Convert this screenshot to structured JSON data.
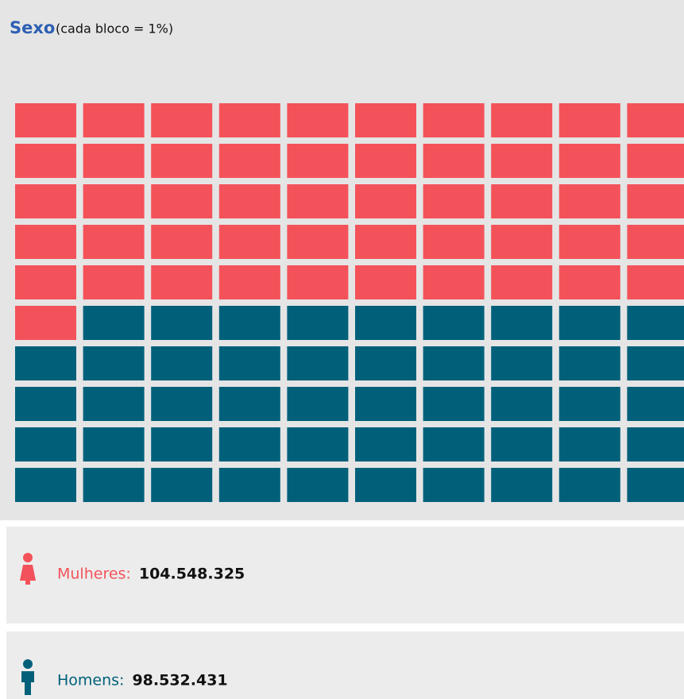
{
  "chart_data": {
    "type": "waffle",
    "title": "Sexo",
    "subtitle": "(cada bloco = 1%)",
    "columns": 10,
    "rows": 10,
    "series": [
      {
        "name": "Mulheres:",
        "color": "#f4525a",
        "value": 51,
        "population": 104548325,
        "population_label": "104.548.325"
      },
      {
        "name": "Homens:",
        "color": "#00607a",
        "value": 49,
        "population": 98532431,
        "population_label": "98.532.431"
      }
    ]
  }
}
